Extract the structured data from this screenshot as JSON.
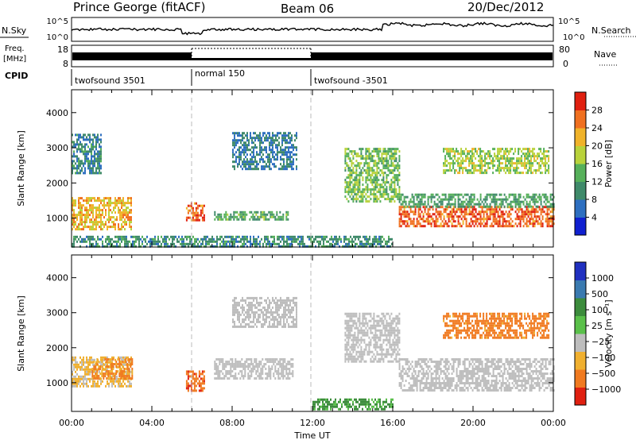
{
  "header": {
    "station": "Prince George (fitACF)",
    "beam": "Beam 06",
    "date": "20/Dec/2012"
  },
  "noise_panel": {
    "left_label": "N.Sky",
    "right_label": "N.Search",
    "left_ticks": [
      "10^5",
      "10^0"
    ],
    "right_ticks": [
      "10^5",
      "10^0"
    ]
  },
  "freq_panel": {
    "left_label_line1": "Freq.",
    "left_label_line2": "[MHz]",
    "right_label": "Nave",
    "left_ticks": [
      "18",
      "8"
    ],
    "right_ticks": [
      "80",
      "0"
    ]
  },
  "cpid_panel": {
    "label": "CPID",
    "segments": [
      {
        "start_hour": 0,
        "end_hour": 6,
        "label": "twofsound 3501"
      },
      {
        "start_hour": 6,
        "end_hour": 12,
        "label": "normal 150"
      },
      {
        "start_hour": 12,
        "end_hour": 24,
        "label": "twofsound -3501"
      }
    ]
  },
  "x_axis": {
    "label": "Time UT",
    "ticks": [
      "00:00",
      "04:00",
      "08:00",
      "12:00",
      "16:00",
      "20:00",
      "00:00"
    ],
    "range_hours": [
      0,
      24
    ]
  },
  "power_panel": {
    "ylabel": "Slant Range [km]",
    "yticks": [
      "1000",
      "2000",
      "3000",
      "4000"
    ],
    "colorbar_label": "Power [dB]",
    "colorbar_ticks": [
      "4",
      "8",
      "12",
      "16",
      "20",
      "24",
      "28"
    ]
  },
  "velocity_panel": {
    "ylabel": "Slant Range [km]",
    "yticks": [
      "1000",
      "2000",
      "3000",
      "4000"
    ],
    "colorbar_label": "Velocity [m s⁻¹]",
    "colorbar_ticks": [
      "1000",
      "500",
      "100",
      "25",
      "−25",
      "−100",
      "−500",
      "−1000"
    ]
  },
  "colors": {
    "power_scale": [
      "#1020d0",
      "#2e6fc0",
      "#3f8a6a",
      "#56b05a",
      "#b9d23b",
      "#f0b32a",
      "#f07020",
      "#e02010"
    ],
    "velocity_scale": [
      "#2030c0",
      "#3a7ab0",
      "#3c8c3c",
      "#5ac04a",
      "#bdbdbd",
      "#f0b030",
      "#f07a20",
      "#e02010"
    ]
  },
  "chart_data": [
    {
      "type": "heatmap",
      "title": "Power",
      "xlabel": "Time UT",
      "ylabel": "Slant Range [km]",
      "xlim": [
        0,
        24
      ],
      "ylim": [
        180,
        4650
      ],
      "clim": [
        0,
        32
      ],
      "units": "dB",
      "regions": [
        {
          "t_start": 0.0,
          "t_end": 3.0,
          "r_min": 700,
          "r_max": 1600,
          "value": 22
        },
        {
          "t_start": 0.0,
          "t_end": 1.5,
          "r_min": 2300,
          "r_max": 3400,
          "value": 9
        },
        {
          "t_start": 5.7,
          "t_end": 6.6,
          "r_min": 950,
          "r_max": 1450,
          "value": 27
        },
        {
          "t_start": 7.1,
          "t_end": 10.8,
          "r_min": 950,
          "r_max": 1200,
          "value": 13
        },
        {
          "t_start": 8.0,
          "t_end": 11.2,
          "r_min": 2400,
          "r_max": 3450,
          "value": 8
        },
        {
          "t_start": 13.6,
          "t_end": 16.3,
          "r_min": 1500,
          "r_max": 3000,
          "value": 15
        },
        {
          "t_start": 16.3,
          "t_end": 24.0,
          "r_min": 780,
          "r_max": 1350,
          "value": 27
        },
        {
          "t_start": 16.3,
          "t_end": 24.0,
          "r_min": 1350,
          "r_max": 1700,
          "value": 12
        },
        {
          "t_start": 18.5,
          "t_end": 23.8,
          "r_min": 2300,
          "r_max": 3000,
          "value": 17
        },
        {
          "t_start": 0.0,
          "t_end": 16.0,
          "r_min": 180,
          "r_max": 500,
          "value": 10
        }
      ]
    },
    {
      "type": "heatmap",
      "title": "Velocity",
      "xlabel": "Time UT",
      "ylabel": "Slant Range [km]",
      "xlim": [
        0,
        24
      ],
      "ylim": [
        180,
        4650
      ],
      "clim": [
        -1000,
        1000
      ],
      "units": "m s⁻¹",
      "regions": [
        {
          "t_start": 0.0,
          "t_end": 3.0,
          "r_min": 900,
          "r_max": 1750,
          "value": -30
        },
        {
          "t_start": 1.0,
          "t_end": 3.0,
          "r_min": 1100,
          "r_max": 1700,
          "value": -120
        },
        {
          "t_start": 5.7,
          "t_end": 6.6,
          "r_min": 800,
          "r_max": 1350,
          "value": -400
        },
        {
          "t_start": 7.1,
          "t_end": 11.0,
          "r_min": 1100,
          "r_max": 1700,
          "value": 10
        },
        {
          "t_start": 8.0,
          "t_end": 11.2,
          "r_min": 2600,
          "r_max": 3450,
          "value": 10
        },
        {
          "t_start": 13.6,
          "t_end": 16.3,
          "r_min": 1600,
          "r_max": 3000,
          "value": 10
        },
        {
          "t_start": 16.3,
          "t_end": 24.0,
          "r_min": 800,
          "r_max": 1700,
          "value": 5
        },
        {
          "t_start": 18.5,
          "t_end": 23.8,
          "r_min": 2300,
          "r_max": 3000,
          "value": -150
        },
        {
          "t_start": 12.0,
          "t_end": 16.0,
          "r_min": 250,
          "r_max": 550,
          "value": 120
        }
      ]
    }
  ]
}
